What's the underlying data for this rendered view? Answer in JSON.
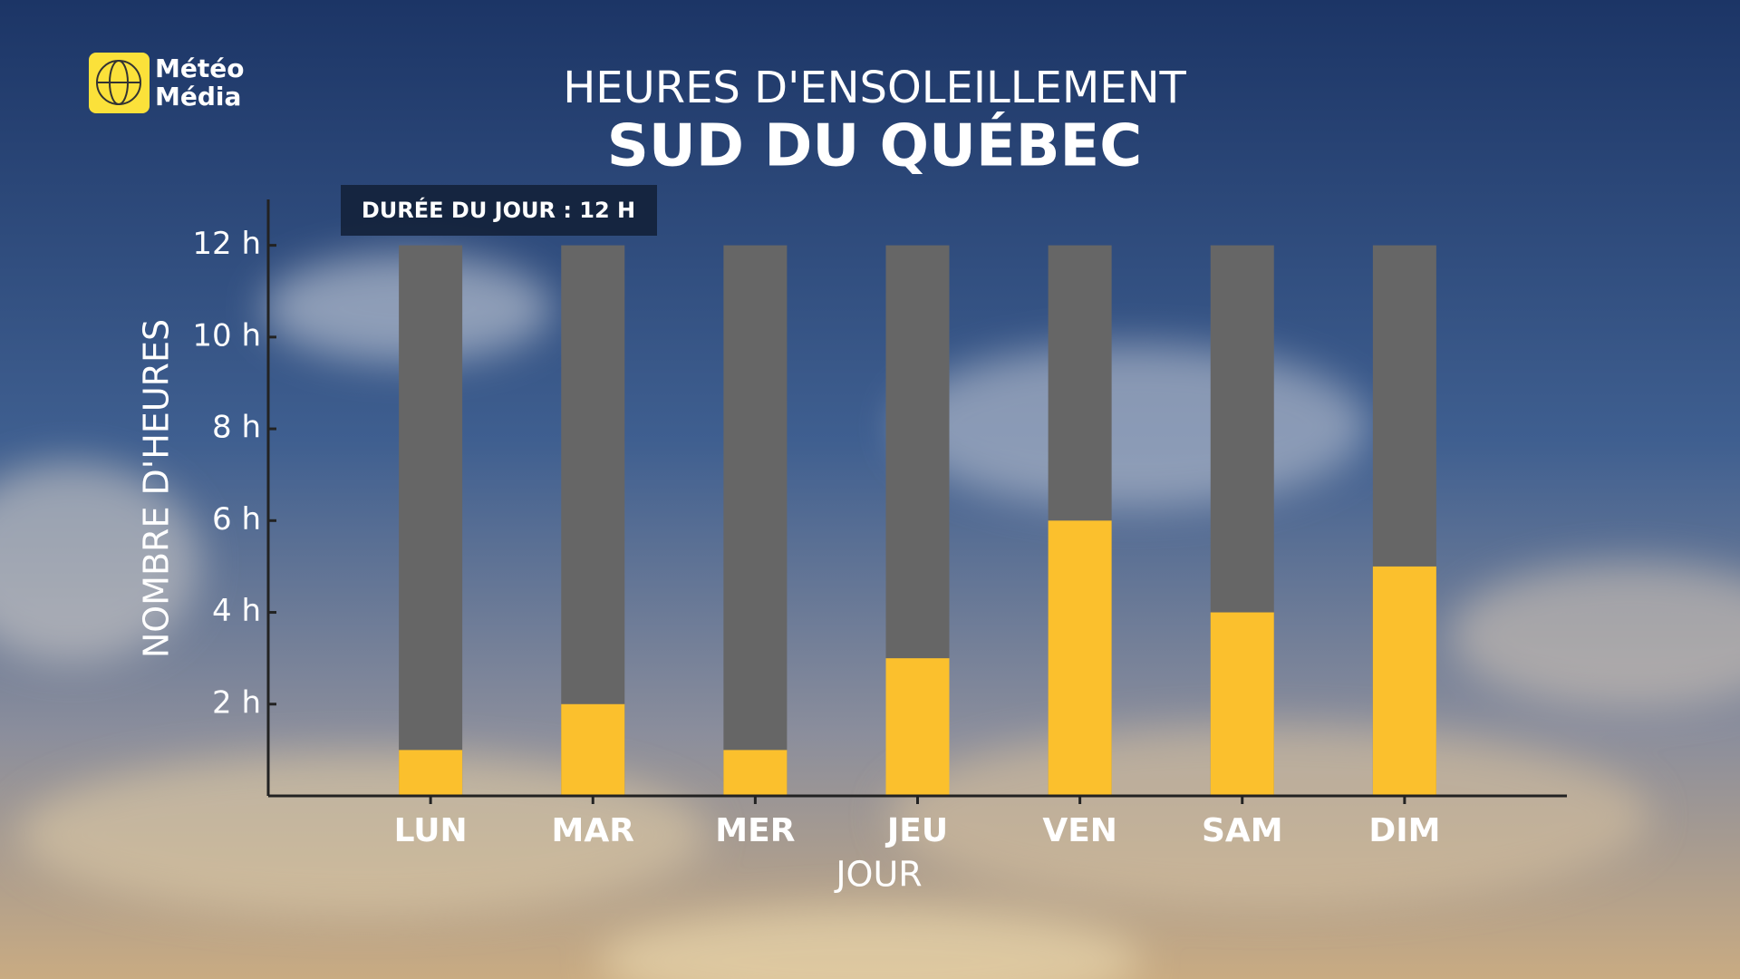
{
  "logo": {
    "line1": "Météo",
    "line2": "Média"
  },
  "chart_data": {
    "type": "bar",
    "overlay": true,
    "title": "HEURES D'ENSOLEILLEMENT",
    "subtitle": "SUD DU QUÉBEC",
    "annotation": "DURÉE DU JOUR : 12 H",
    "y_label": "NOMBRE D'HEURES",
    "x_label": "JOUR",
    "categories": [
      "LUN",
      "MAR",
      "MER",
      "JEU",
      "VEN",
      "SAM",
      "DIM"
    ],
    "series": [
      {
        "color": "#666666",
        "values": [
          12,
          12,
          12,
          12,
          12,
          12,
          12
        ]
      },
      {
        "color": "#fbc02d",
        "values": [
          1,
          2,
          1,
          3,
          6,
          4,
          5
        ]
      }
    ],
    "ylim": [
      0,
      13
    ],
    "yticks": [
      {
        "value": 2,
        "label": "2 h"
      },
      {
        "value": 4,
        "label": "4 h"
      },
      {
        "value": 6,
        "label": "6 h"
      },
      {
        "value": 8,
        "label": "8 h"
      },
      {
        "value": 10,
        "label": "10 h"
      },
      {
        "value": 12,
        "label": "12 h"
      }
    ],
    "grid": false
  }
}
